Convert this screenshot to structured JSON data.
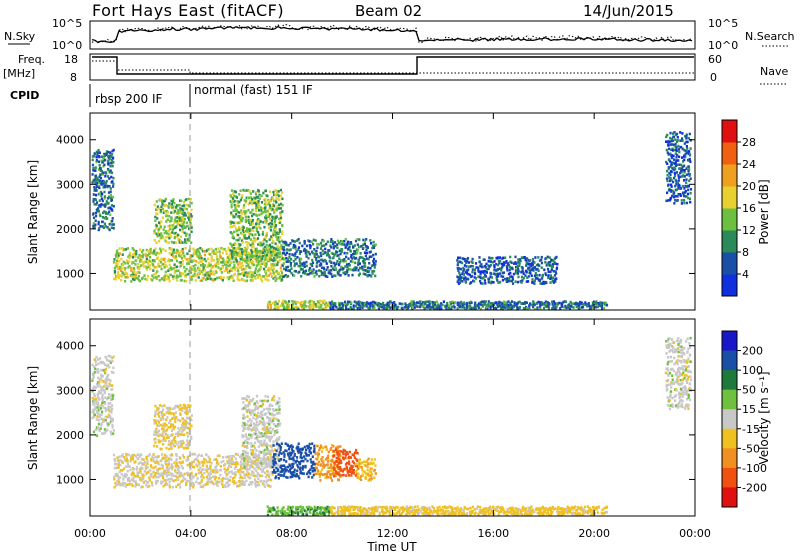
{
  "header": {
    "station": "Fort Hays East (fitACF)",
    "beam": "Beam 02",
    "date": "14/Jun/2015"
  },
  "top_panel": {
    "left_label": "N.Sky",
    "right_label": "N.Search",
    "left_ticks": [
      "10^5",
      "10^0"
    ],
    "right_ticks": [
      "10^5",
      "10^0"
    ]
  },
  "freq_panel": {
    "left_label_line1": "Freq.",
    "left_label_line2": "[MHz]",
    "left_ticks": [
      "18",
      "8"
    ],
    "right_ticks": [
      "60",
      "0"
    ],
    "right_label": "Nave"
  },
  "cpid_panel": {
    "label": "CPID",
    "segments": [
      "rbsp 200 IF",
      "normal (fast) 151 IF"
    ]
  },
  "axes": {
    "xlabel": "Time UT",
    "xticks": [
      "00:00",
      "04:00",
      "08:00",
      "12:00",
      "16:00",
      "20:00",
      "00:00"
    ],
    "ylabel": "Slant Range [km]",
    "yticks": [
      "1000",
      "2000",
      "3000",
      "4000"
    ]
  },
  "power_colorbar": {
    "label": "Power [dB]",
    "ticks": [
      "4",
      "8",
      "12",
      "16",
      "20",
      "24",
      "28"
    ],
    "colors": [
      "#1030e0",
      "#1a4fa8",
      "#2a8a5a",
      "#6cc040",
      "#e8d030",
      "#f0a020",
      "#f06010",
      "#e01010"
    ]
  },
  "velocity_colorbar": {
    "label": "Velocity [m s⁻¹]",
    "ticks": [
      "200",
      "100",
      "50",
      "15",
      "-15",
      "-50",
      "-100",
      "-200"
    ],
    "colors": [
      "#1818c8",
      "#1a4fa8",
      "#1e7a3a",
      "#70c040",
      "#c8c8c8",
      "#f0c020",
      "#f09020",
      "#f05010",
      "#e01010"
    ]
  },
  "chart_data": {
    "type": "heatmap",
    "title": "Fort Hays East (fitACF)",
    "xlabel": "Time UT",
    "ylabel": "Slant Range [km]",
    "xlim": [
      0,
      24
    ],
    "ylim": [
      180,
      4600
    ],
    "series": [
      {
        "name": "Power [dB]",
        "regions": [
          {
            "t": [
              0.05,
              0.9
            ],
            "r": [
              2000,
              3800
            ],
            "value": 8
          },
          {
            "t": [
              0.9,
              7.6
            ],
            "r": [
              850,
              1600
            ],
            "value": 16
          },
          {
            "t": [
              2.5,
              4.0
            ],
            "r": [
              1700,
              2700
            ],
            "value": 14
          },
          {
            "t": [
              5.5,
              7.6
            ],
            "r": [
              1300,
              2900
            ],
            "value": 14
          },
          {
            "t": [
              7.6,
              11.3
            ],
            "r": [
              950,
              1800
            ],
            "value": 8
          },
          {
            "t": [
              7.0,
              9.5
            ],
            "r": [
              220,
              420
            ],
            "value": 16
          },
          {
            "t": [
              9.5,
              20.5
            ],
            "r": [
              200,
              400
            ],
            "value": 8
          },
          {
            "t": [
              14.5,
              18.5
            ],
            "r": [
              800,
              1400
            ],
            "value": 6
          },
          {
            "t": [
              22.8,
              23.8
            ],
            "r": [
              2600,
              4200
            ],
            "value": 6
          }
        ]
      },
      {
        "name": "Velocity [m s⁻¹]",
        "regions": [
          {
            "t": [
              0.05,
              0.9
            ],
            "r": [
              2000,
              3800
            ],
            "value": 0
          },
          {
            "t": [
              0.9,
              7.2
            ],
            "r": [
              850,
              1600
            ],
            "value": -10
          },
          {
            "t": [
              2.5,
              4.0
            ],
            "r": [
              1700,
              2700
            ],
            "value": -20
          },
          {
            "t": [
              6.0,
              7.5
            ],
            "r": [
              1300,
              2900
            ],
            "value": 0
          },
          {
            "t": [
              7.2,
              8.9
            ],
            "r": [
              1050,
              1850
            ],
            "value": 150
          },
          {
            "t": [
              8.9,
              9.9
            ],
            "r": [
              1000,
              1800
            ],
            "value": -60
          },
          {
            "t": [
              9.6,
              10.6
            ],
            "r": [
              1100,
              1700
            ],
            "value": -180
          },
          {
            "t": [
              10.5,
              11.3
            ],
            "r": [
              1000,
              1500
            ],
            "value": -40
          },
          {
            "t": [
              7.0,
              9.5
            ],
            "r": [
              220,
              420
            ],
            "value": 40
          },
          {
            "t": [
              9.5,
              20.5
            ],
            "r": [
              200,
              420
            ],
            "value": -30
          },
          {
            "t": [
              22.8,
              23.8
            ],
            "r": [
              2600,
              4200
            ],
            "value": 0
          }
        ]
      }
    ]
  }
}
